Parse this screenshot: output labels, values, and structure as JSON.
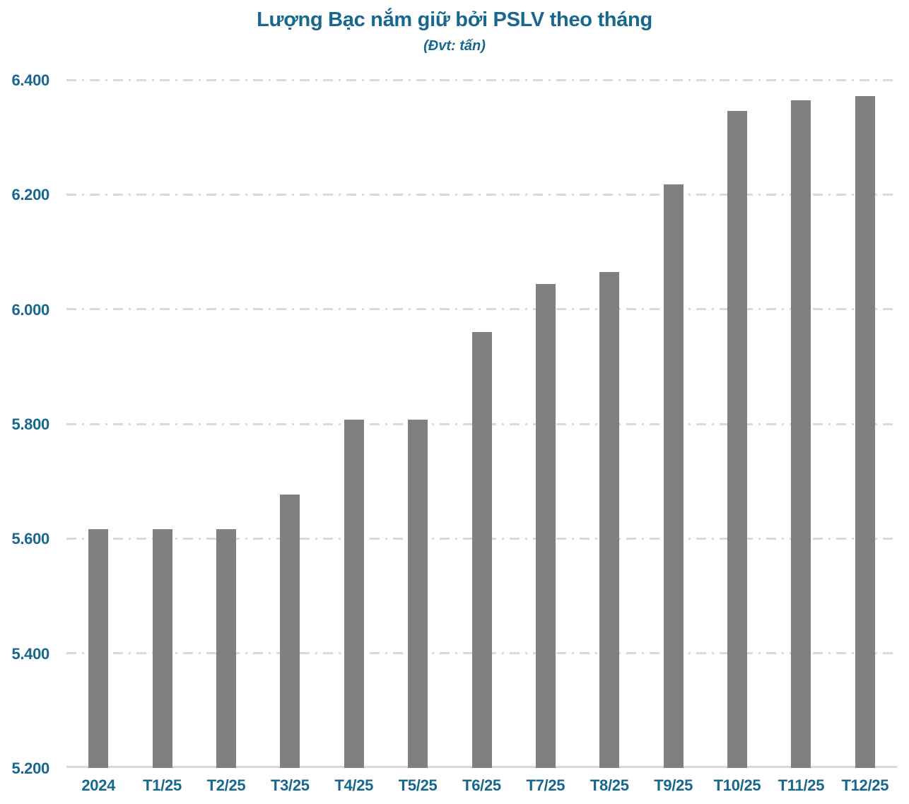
{
  "chart_data": {
    "type": "bar",
    "title": "Lượng Bạc nắm giữ bởi PSLV theo tháng",
    "subtitle": "(Đvt: tấn)",
    "categories": [
      "2024",
      "T1/25",
      "T2/25",
      "T3/25",
      "T4/25",
      "T5/25",
      "T6/25",
      "T7/25",
      "T8/25",
      "T9/25",
      "T10/25",
      "T11/25",
      "T12/25"
    ],
    "values": [
      5617,
      5617,
      5617,
      5677,
      5807,
      5807,
      5960,
      6044,
      6065,
      6218,
      6346,
      6364,
      6372
    ],
    "xlabel": "",
    "ylabel": "",
    "ylim": [
      5200,
      6400
    ],
    "yticks": [
      {
        "label": "5.200",
        "value": 5200
      },
      {
        "label": "5.400",
        "value": 5400
      },
      {
        "label": "5.600",
        "value": 5600
      },
      {
        "label": "5.800",
        "value": 5800
      },
      {
        "label": "6.000",
        "value": 6000
      },
      {
        "label": "6.200",
        "value": 6200
      },
      {
        "label": "6.400",
        "value": 6400
      }
    ],
    "grid": true,
    "gridline_style": "dash-dot",
    "legend": "none",
    "colors": {
      "bar": "#808080",
      "text": "#17678F",
      "gridline": "#d9d9d9",
      "axis_line": "#d9d9d9",
      "background": "#ffffff"
    }
  }
}
